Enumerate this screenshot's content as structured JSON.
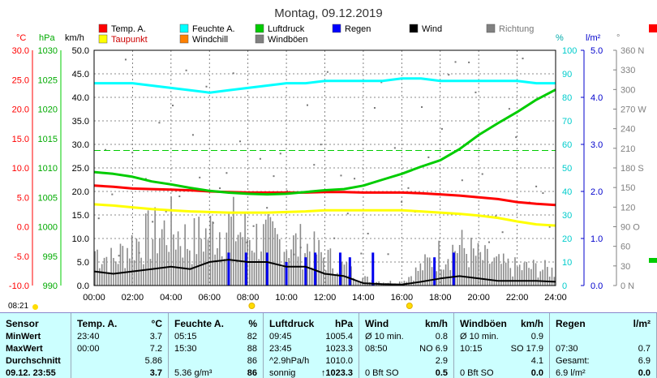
{
  "chart_data": {
    "type": "line",
    "title": "Montag, 09.12.2019",
    "xlabel": "",
    "x_ticks": [
      "00:00",
      "02:00",
      "04:00",
      "06:00",
      "08:00",
      "10:00",
      "12:00",
      "14:00",
      "16:00",
      "18:00",
      "20:00",
      "22:00",
      "24:00"
    ],
    "axes": {
      "temp": {
        "unit": "°C",
        "range": [
          -10,
          30
        ],
        "ticks": [
          "30.0",
          "25.0",
          "20.0",
          "15.0",
          "10.0",
          "5.0",
          "0.0",
          "-5.0",
          "-10.0"
        ],
        "color": "#ff0000"
      },
      "pressure": {
        "unit": "hPa",
        "range": [
          990,
          1030
        ],
        "ticks": [
          "1030",
          "1025",
          "1020",
          "1015",
          "1010",
          "1005",
          "1000",
          "995",
          "990"
        ],
        "color": "#00cc00"
      },
      "wind": {
        "unit": "km/h",
        "range": [
          0,
          50
        ],
        "ticks": [
          "50.0",
          "45.0",
          "40.0",
          "35.0",
          "30.0",
          "25.0",
          "20.0",
          "15.0",
          "10.0",
          "5.0",
          "0.0"
        ],
        "color": "#000000"
      },
      "humidity": {
        "unit": "%",
        "range": [
          0,
          100
        ],
        "ticks": [
          "100",
          "90",
          "80",
          "70",
          "60",
          "50",
          "40",
          "30",
          "20",
          "10",
          "0"
        ],
        "color": "#00cccc"
      },
      "rain": {
        "unit": "l/m²",
        "range": [
          0,
          5
        ],
        "ticks": [
          "5.0",
          "4.0",
          "3.0",
          "2.0",
          "1.0",
          "0.0"
        ],
        "color": "#0000cc"
      },
      "direction": {
        "unit": "°",
        "range": [
          0,
          360
        ],
        "ticks": [
          "360 N",
          "330",
          "300",
          "270 W",
          "240",
          "210",
          "180 S",
          "150",
          "120",
          "90 O",
          "60",
          "30",
          "0 N"
        ],
        "color": "#808080"
      }
    },
    "legend": [
      {
        "name": "Temp. A.",
        "color": "#ff0000"
      },
      {
        "name": "Feuchte A.",
        "color": "#00ffff"
      },
      {
        "name": "Luftdruck",
        "color": "#00cc00"
      },
      {
        "name": "Regen",
        "color": "#0000ff"
      },
      {
        "name": "Wind",
        "color": "#000000"
      },
      {
        "name": "Richtung",
        "color": "#808080"
      },
      {
        "name": "Taupunkt",
        "color": "#ffff00"
      },
      {
        "name": "Windchill",
        "color": "#ff8000"
      },
      {
        "name": "Windböen",
        "color": "#808080"
      }
    ],
    "series": [
      {
        "name": "Temp. A.",
        "axis": "temp",
        "color": "#ff0000",
        "x": [
          0,
          1,
          2,
          3,
          4,
          5,
          6,
          7,
          8,
          9,
          10,
          11,
          12,
          13,
          14,
          15,
          16,
          17,
          18,
          19,
          20,
          21,
          22,
          23,
          24
        ],
        "values": [
          7.0,
          6.8,
          6.5,
          6.4,
          6.3,
          6.2,
          6.0,
          5.9,
          5.8,
          5.8,
          5.8,
          5.8,
          5.9,
          5.9,
          5.8,
          5.8,
          5.8,
          5.7,
          5.5,
          5.3,
          5.0,
          4.7,
          4.2,
          3.9,
          3.7
        ]
      },
      {
        "name": "Taupunkt",
        "axis": "temp",
        "color": "#ffff00",
        "x": [
          0,
          1,
          2,
          3,
          4,
          5,
          6,
          7,
          8,
          9,
          10,
          11,
          12,
          13,
          14,
          15,
          16,
          17,
          18,
          19,
          20,
          21,
          22,
          23,
          24
        ],
        "values": [
          3.8,
          3.6,
          3.3,
          3.0,
          2.8,
          2.6,
          2.5,
          2.4,
          2.4,
          2.4,
          2.5,
          2.6,
          2.8,
          2.8,
          2.8,
          2.8,
          2.8,
          2.6,
          2.4,
          2.2,
          1.9,
          1.5,
          0.9,
          0.4,
          0.2
        ]
      },
      {
        "name": "Feuchte A.",
        "axis": "humidity",
        "color": "#00ffff",
        "x": [
          0,
          1,
          2,
          3,
          4,
          5,
          6,
          7,
          8,
          9,
          10,
          11,
          12,
          13,
          14,
          15,
          16,
          17,
          18,
          19,
          20,
          21,
          22,
          23,
          24
        ],
        "values": [
          86,
          86,
          86,
          85,
          84,
          83,
          82,
          83,
          84,
          85,
          86,
          86,
          87,
          87,
          87,
          87,
          88,
          88,
          87,
          87,
          87,
          87,
          87,
          86,
          86
        ]
      },
      {
        "name": "Luftdruck",
        "axis": "pressure",
        "color": "#00cc00",
        "x": [
          0,
          1,
          2,
          3,
          4,
          5,
          6,
          7,
          8,
          9,
          10,
          11,
          12,
          13,
          14,
          15,
          16,
          17,
          18,
          19,
          20,
          21,
          22,
          23,
          24
        ],
        "values": [
          1009.3,
          1009.0,
          1008.5,
          1007.7,
          1007.2,
          1006.6,
          1006.1,
          1005.8,
          1005.6,
          1005.5,
          1005.6,
          1005.9,
          1006.2,
          1006.4,
          1007.0,
          1008.0,
          1009.0,
          1010.2,
          1011.3,
          1013.2,
          1015.6,
          1017.6,
          1019.5,
          1021.6,
          1023.3
        ]
      },
      {
        "name": "Wind",
        "axis": "wind",
        "color": "#000000",
        "x": [
          0,
          1,
          2,
          3,
          4,
          5,
          6,
          7,
          8,
          9,
          10,
          11,
          12,
          13,
          14,
          15,
          16,
          17,
          18,
          19,
          20,
          21,
          22,
          23,
          24
        ],
        "values": [
          3.0,
          2.5,
          3.0,
          3.5,
          4.0,
          3.5,
          5.0,
          5.5,
          5.0,
          5.0,
          4.0,
          4.0,
          2.5,
          2.0,
          0.5,
          0.3,
          0.2,
          0.8,
          1.5,
          2.0,
          1.5,
          1.0,
          1.0,
          1.0,
          0.8
        ]
      },
      {
        "name": "Windböen",
        "axis": "wind",
        "color": "#808080",
        "x": [
          0,
          1,
          2,
          3,
          4,
          5,
          6,
          7,
          8,
          9,
          10,
          11,
          12,
          13,
          14,
          15,
          16,
          17,
          18,
          19,
          20,
          21,
          22,
          23,
          24
        ],
        "values": [
          10,
          7,
          12,
          14,
          16,
          12,
          15,
          17,
          14,
          13,
          12,
          11,
          8,
          5,
          2,
          1,
          1,
          5,
          9,
          11,
          8,
          6,
          5,
          5,
          4
        ]
      },
      {
        "name": "Regen",
        "axis": "rain",
        "color": "#0000ff",
        "type": "bar",
        "x": [
          7.0,
          7.9,
          9.0,
          10.0,
          11.0,
          11.5,
          12.8,
          13.3,
          14.5,
          17.7,
          18.7
        ],
        "values": [
          0.7,
          0.7,
          0.7,
          0.5,
          0.6,
          0.7,
          0.7,
          0.6,
          0.7,
          0.6,
          0.7
        ]
      }
    ],
    "reference_lines": [
      {
        "axis": "wind",
        "value": 28.7,
        "color": "#00cc00",
        "style": "dashed"
      }
    ],
    "sun": {
      "sunrise": "08:21",
      "marker_times": [
        8.2,
        16.4
      ]
    }
  },
  "table": {
    "columns": [
      {
        "label": "Sensor",
        "unit": ""
      },
      {
        "label": "Temp. A.",
        "unit": "°C"
      },
      {
        "label": "Feuchte A.",
        "unit": "%"
      },
      {
        "label": "Luftdruck",
        "unit": "hPa"
      },
      {
        "label": "Wind",
        "unit": "km/h"
      },
      {
        "label": "Windböen",
        "unit": "km/h"
      },
      {
        "label": "Regen",
        "unit": "l/m²"
      }
    ],
    "rows": [
      {
        "label": "MinWert",
        "cells": [
          [
            "23:40",
            "3.7"
          ],
          [
            "05:15",
            "82"
          ],
          [
            "09:45",
            "1005.4"
          ],
          [
            "Ø 10 min.",
            "0.8"
          ],
          [
            "Ø 10 min.",
            "0.9"
          ],
          [
            "",
            ""
          ]
        ]
      },
      {
        "label": "MaxWert",
        "cells": [
          [
            "00:00",
            "7.2"
          ],
          [
            "15:30",
            "88"
          ],
          [
            "23:45",
            "1023.3"
          ],
          [
            "08:50",
            "NO 6.9"
          ],
          [
            "10:15",
            "SO 17.9"
          ],
          [
            "07:30",
            "0.7"
          ]
        ]
      },
      {
        "label": "Durchschnitt",
        "cells": [
          [
            "",
            "5.86"
          ],
          [
            "",
            "86"
          ],
          [
            "^2.9hPa/h",
            "1010.0"
          ],
          [
            "",
            "2.9"
          ],
          [
            "",
            "4.1"
          ],
          [
            "Gesamt:",
            "6.9"
          ]
        ]
      },
      {
        "label": "09.12. 23:55",
        "cells": [
          [
            "",
            "3.7"
          ],
          [
            "5.36 g/m³",
            "86"
          ],
          [
            "sonnig",
            "↑1023.3"
          ],
          [
            "0 Bft SO",
            "0.5"
          ],
          [
            "0 Bft SO",
            "0.0"
          ],
          [
            "6.9 l/m²",
            "0.0"
          ]
        ]
      }
    ]
  }
}
